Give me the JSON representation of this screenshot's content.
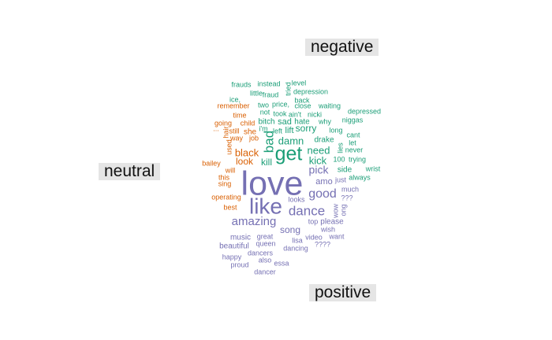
{
  "chart_data": {
    "type": "wordcloud",
    "groups": [
      {
        "name": "negative",
        "color": "#1b9e77"
      },
      {
        "name": "neutral",
        "color": "#d95f02"
      },
      {
        "name": "positive",
        "color": "#7570b3"
      }
    ],
    "words": [
      {
        "text": "frauds",
        "group": "negative"
      },
      {
        "text": "instead",
        "group": "negative"
      },
      {
        "text": "level",
        "group": "negative"
      },
      {
        "text": "little",
        "group": "negative"
      },
      {
        "text": "fraud",
        "group": "negative"
      },
      {
        "text": "tried",
        "group": "negative"
      },
      {
        "text": "depression",
        "group": "negative"
      },
      {
        "text": "ice,",
        "group": "negative"
      },
      {
        "text": "back",
        "group": "negative"
      },
      {
        "text": "two",
        "group": "negative"
      },
      {
        "text": "price,",
        "group": "negative"
      },
      {
        "text": "close",
        "group": "negative"
      },
      {
        "text": "waiting",
        "group": "negative"
      },
      {
        "text": "not",
        "group": "negative"
      },
      {
        "text": "took",
        "group": "negative"
      },
      {
        "text": "ain't",
        "group": "negative"
      },
      {
        "text": "nicki",
        "group": "negative"
      },
      {
        "text": "depressed",
        "group": "negative"
      },
      {
        "text": "bitch",
        "group": "negative"
      },
      {
        "text": "sad",
        "group": "negative"
      },
      {
        "text": "hate",
        "group": "negative"
      },
      {
        "text": "why",
        "group": "negative"
      },
      {
        "text": "niggas",
        "group": "negative"
      },
      {
        "text": "i'm",
        "group": "negative"
      },
      {
        "text": "left",
        "group": "negative"
      },
      {
        "text": "lift",
        "group": "negative"
      },
      {
        "text": "sorry",
        "group": "negative"
      },
      {
        "text": "long",
        "group": "negative"
      },
      {
        "text": "cant",
        "group": "negative"
      },
      {
        "text": "bad",
        "group": "negative"
      },
      {
        "text": "get",
        "group": "negative"
      },
      {
        "text": "damn",
        "group": "negative"
      },
      {
        "text": "drake",
        "group": "negative"
      },
      {
        "text": "let",
        "group": "negative"
      },
      {
        "text": "lies",
        "group": "negative"
      },
      {
        "text": "never",
        "group": "negative"
      },
      {
        "text": "need",
        "group": "negative"
      },
      {
        "text": "trying",
        "group": "negative"
      },
      {
        "text": "kill",
        "group": "negative"
      },
      {
        "text": "kick",
        "group": "negative"
      },
      {
        "text": "100",
        "group": "negative"
      },
      {
        "text": "wrist",
        "group": "negative"
      },
      {
        "text": "side",
        "group": "negative"
      },
      {
        "text": "always",
        "group": "negative"
      },
      {
        "text": "remember",
        "group": "neutral"
      },
      {
        "text": "time",
        "group": "neutral"
      },
      {
        "text": "child",
        "group": "neutral"
      },
      {
        "text": "going",
        "group": "neutral"
      },
      {
        "text": "hair",
        "group": "neutral"
      },
      {
        "text": "she",
        "group": "neutral"
      },
      {
        "text": "still",
        "group": "neutral"
      },
      {
        "text": "way",
        "group": "neutral"
      },
      {
        "text": "job",
        "group": "neutral"
      },
      {
        "text": "used",
        "group": "neutral"
      },
      {
        "text": "black",
        "group": "neutral"
      },
      {
        "text": "bailey",
        "group": "neutral"
      },
      {
        "text": "look",
        "group": "neutral"
      },
      {
        "text": "will",
        "group": "neutral"
      },
      {
        "text": "this",
        "group": "neutral"
      },
      {
        "text": "sing",
        "group": "neutral"
      },
      {
        "text": "operating",
        "group": "neutral"
      },
      {
        "text": "best",
        "group": "neutral"
      },
      {
        "text": "...",
        "group": "neutral"
      },
      {
        "text": "love",
        "group": "positive"
      },
      {
        "text": "like",
        "group": "positive"
      },
      {
        "text": "dance",
        "group": "positive"
      },
      {
        "text": "good",
        "group": "positive"
      },
      {
        "text": "pick",
        "group": "positive"
      },
      {
        "text": "amo",
        "group": "positive"
      },
      {
        "text": "just",
        "group": "positive"
      },
      {
        "text": "much",
        "group": "positive"
      },
      {
        "text": "amazing",
        "group": "positive"
      },
      {
        "text": "looks",
        "group": "positive"
      },
      {
        "text": "song",
        "group": "positive"
      },
      {
        "text": "top",
        "group": "positive"
      },
      {
        "text": "please",
        "group": "positive"
      },
      {
        "text": "wow",
        "group": "positive"
      },
      {
        "text": "ong",
        "group": "positive"
      },
      {
        "text": "???",
        "group": "positive"
      },
      {
        "text": "wish",
        "group": "positive"
      },
      {
        "text": "music",
        "group": "positive"
      },
      {
        "text": "great",
        "group": "positive"
      },
      {
        "text": "want",
        "group": "positive"
      },
      {
        "text": "video",
        "group": "positive"
      },
      {
        "text": "lisa",
        "group": "positive"
      },
      {
        "text": "queen",
        "group": "positive"
      },
      {
        "text": "????",
        "group": "positive"
      },
      {
        "text": "beautiful",
        "group": "positive"
      },
      {
        "text": "dancing",
        "group": "positive"
      },
      {
        "text": "dancers",
        "group": "positive"
      },
      {
        "text": "happy",
        "group": "positive"
      },
      {
        "text": "also",
        "group": "positive"
      },
      {
        "text": "essa",
        "group": "positive"
      },
      {
        "text": "proud",
        "group": "positive"
      },
      {
        "text": "dancer",
        "group": "positive"
      }
    ]
  }
}
